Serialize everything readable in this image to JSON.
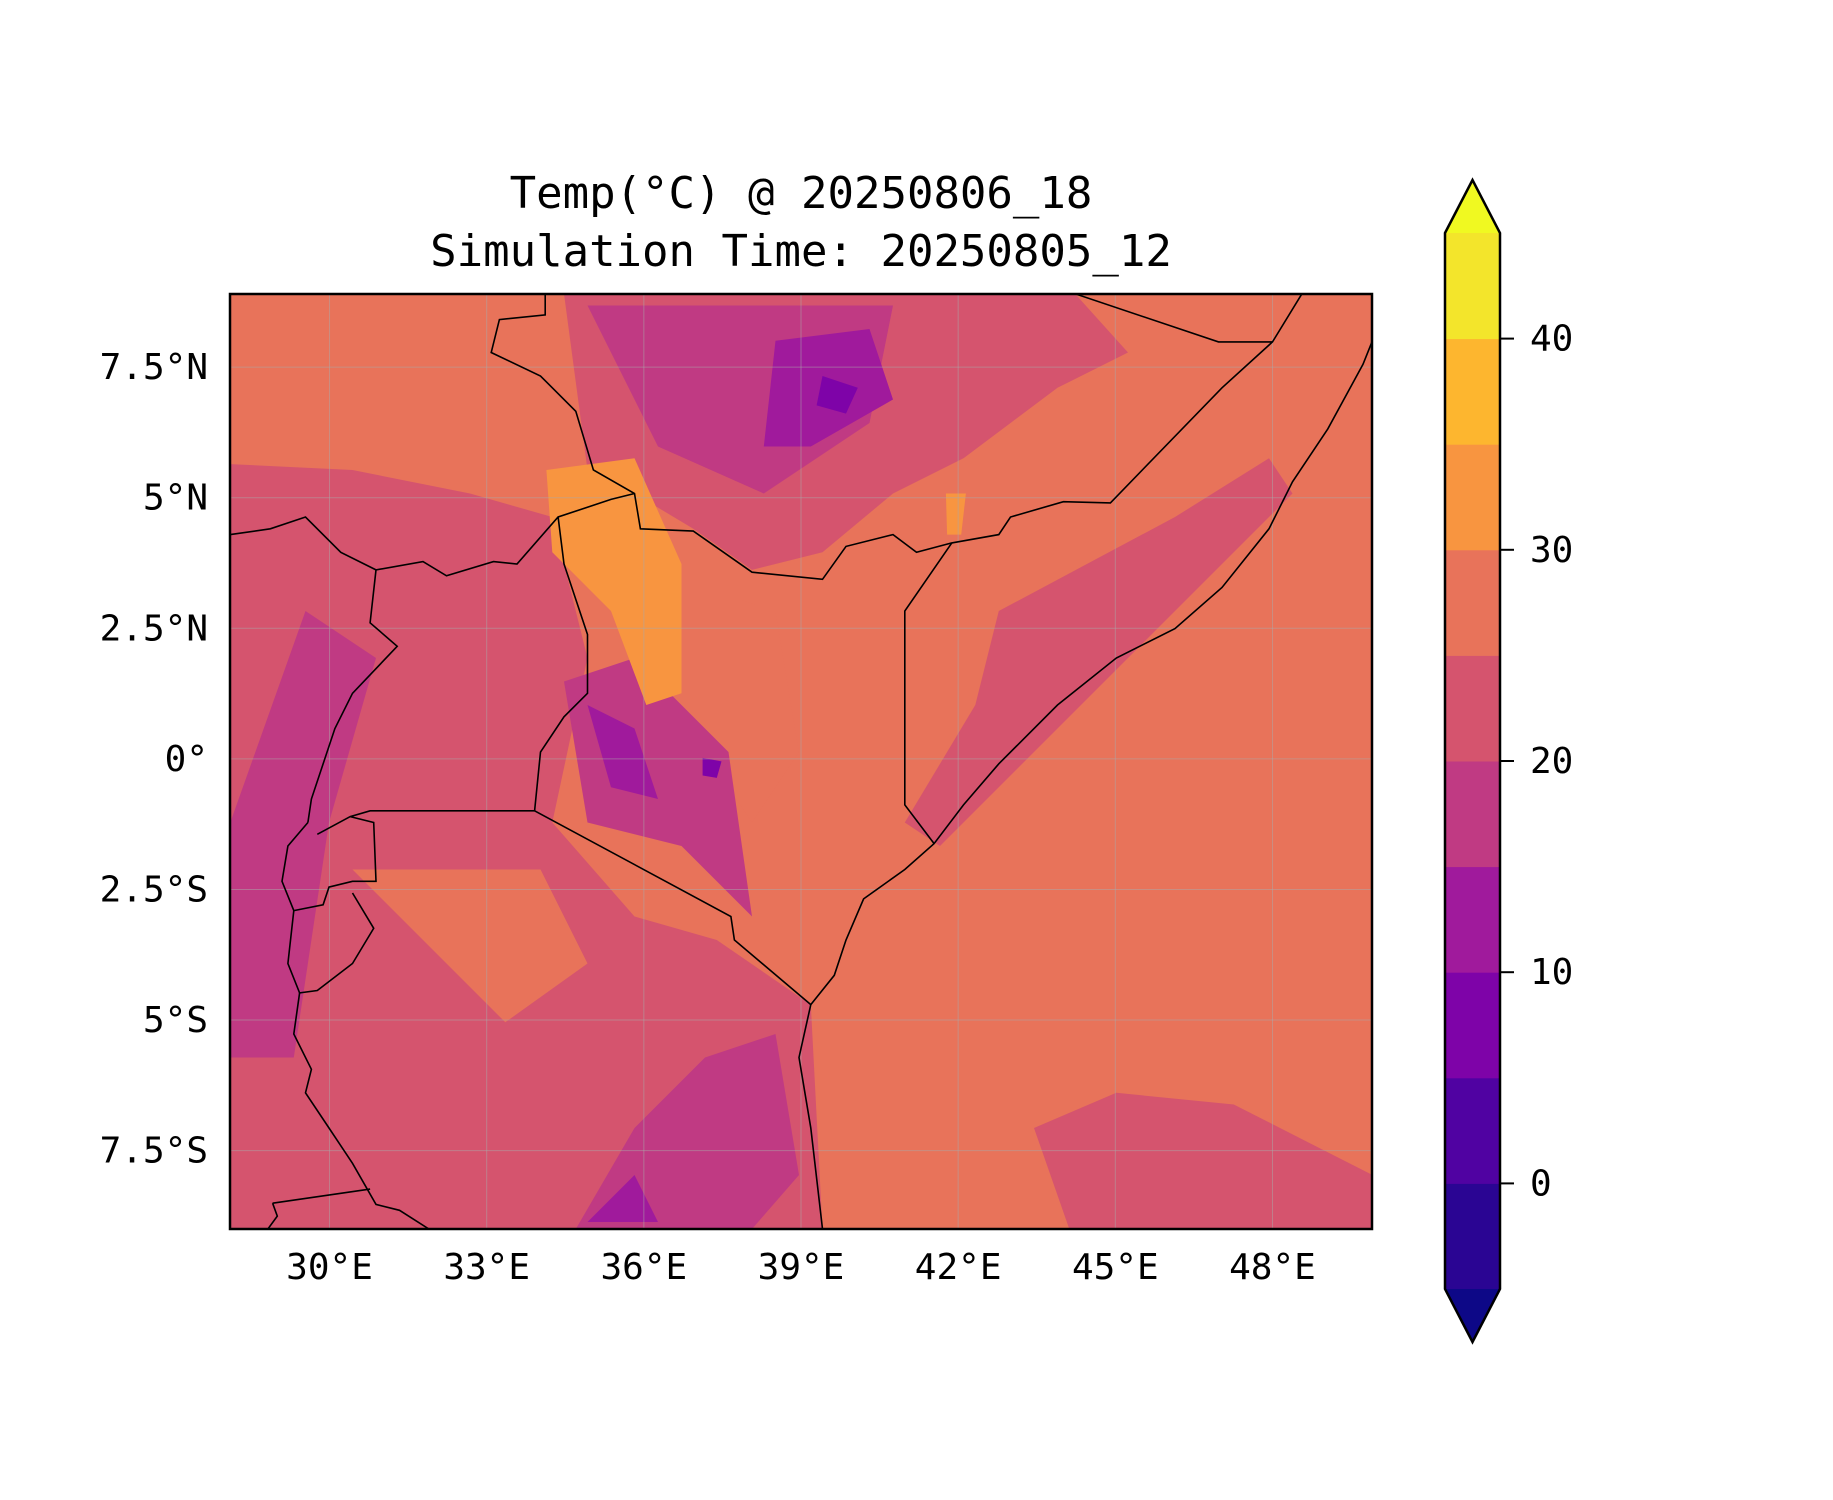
{
  "chart_data": {
    "type": "heatmap",
    "subtype": "filled-contour-map",
    "title": [
      "Temp(°C) @ 20250806_18",
      "Simulation Time: 20250805_12"
    ],
    "variable": "Temperature",
    "units": "°C",
    "xlim": [
      28.1,
      49.9
    ],
    "ylim": [
      -9.0,
      8.9
    ],
    "grid": true,
    "x_ticks": [
      30,
      33,
      36,
      39,
      42,
      45,
      48
    ],
    "x_tick_labels": [
      "30°E",
      "33°E",
      "36°E",
      "39°E",
      "42°E",
      "45°E",
      "48°E"
    ],
    "y_ticks": [
      7.5,
      5,
      2.5,
      0,
      -2.5,
      -5,
      -7.5
    ],
    "y_tick_labels": [
      "7.5°N",
      "5°N",
      "2.5°N",
      "0°",
      "2.5°S",
      "5°S",
      "7.5°S"
    ],
    "colorbar": {
      "levels": [
        -5,
        0,
        5,
        10,
        15,
        20,
        25,
        30,
        35,
        40,
        45
      ],
      "colors": [
        "#2a0593",
        "#5002a2",
        "#7e03a8",
        "#a01a9c",
        "#c03a83",
        "#d5546e",
        "#e8735a",
        "#f89540",
        "#fdb62f",
        "#f3e52b"
      ],
      "extend_min_color": "#0d0887",
      "extend_max_color": "#f0f921",
      "ticks": [
        0,
        10,
        20,
        30,
        40
      ],
      "tick_labels": [
        "0",
        "10",
        "20",
        "30",
        "40"
      ],
      "extend": "both",
      "placement": "right"
    },
    "dominant_ranges": {
      "ocean_and_eastern_lowlands": "25-30",
      "western_and_southern_plateau": "20-25",
      "ethiopian_and_kenyan_highlands": "5-20",
      "northern_kenya_turkana": "30-35"
    }
  }
}
